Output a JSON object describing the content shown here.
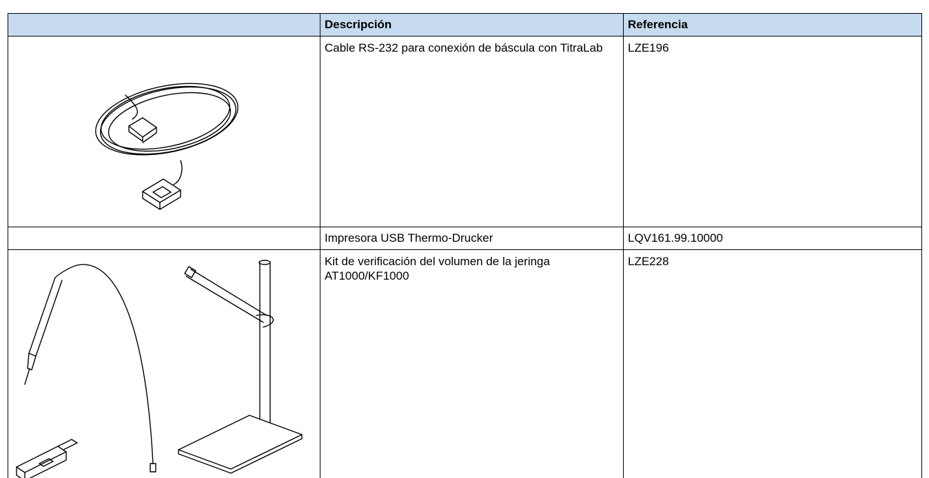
{
  "table": {
    "header": {
      "description": "Descripción",
      "reference": "Referencia"
    },
    "rows": [
      {
        "description": "Cable RS-232 para conexión de báscula con TitraLab",
        "reference": "LZE196"
      },
      {
        "description": "Impresora USB Thermo-Drucker",
        "reference": "LQV161.99.10000"
      },
      {
        "description": "Kit de verificación del volumen de la jeringa AT1000/KF1000",
        "reference": "LZE228"
      }
    ]
  }
}
